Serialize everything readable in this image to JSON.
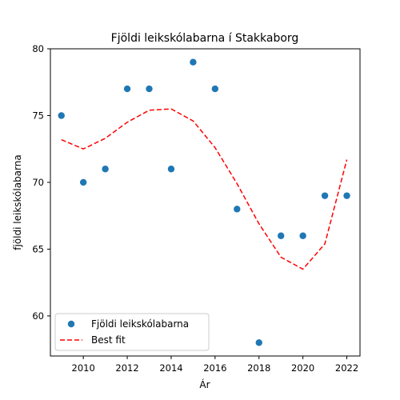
{
  "chart_data": {
    "type": "scatter",
    "title": "Fjöldi leikskólabarna í Stakkaborg",
    "xlabel": "Ár",
    "ylabel": "fjöldi leikskólabarna",
    "xlim": [
      2008.5,
      2022.6
    ],
    "ylim": [
      57,
      80
    ],
    "xticks": [
      2010,
      2012,
      2014,
      2016,
      2018,
      2020,
      2022
    ],
    "yticks": [
      60,
      65,
      70,
      75,
      80
    ],
    "grid": false,
    "legend_position": "lower left",
    "series": [
      {
        "name": "Fjöldi leikskólabarna",
        "kind": "scatter",
        "color": "#1f77b4",
        "x": [
          2009,
          2010,
          2011,
          2012,
          2013,
          2014,
          2015,
          2016,
          2017,
          2018,
          2019,
          2020,
          2021,
          2022
        ],
        "y": [
          75,
          70,
          71,
          77,
          77,
          71,
          79,
          77,
          68,
          58,
          66,
          66,
          69,
          69
        ]
      },
      {
        "name": "Best fit",
        "kind": "line",
        "style": "dashed",
        "color": "#ff0000",
        "x": [
          2009,
          2010,
          2011,
          2012,
          2013,
          2014,
          2015,
          2016,
          2017,
          2018,
          2019,
          2020,
          2021,
          2022
        ],
        "y": [
          73.2,
          72.5,
          73.3,
          74.5,
          75.4,
          75.5,
          74.6,
          72.6,
          69.9,
          66.9,
          64.4,
          63.5,
          65.4,
          71.7
        ]
      }
    ]
  }
}
